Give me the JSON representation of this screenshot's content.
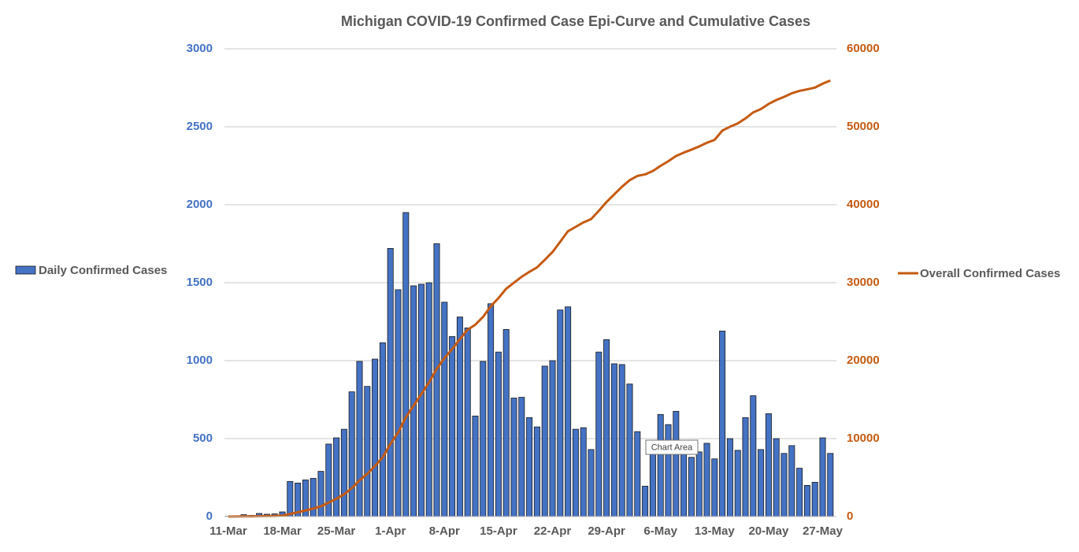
{
  "chart_data": {
    "type": "bar_line",
    "title": "Michigan COVID-19 Confirmed Case Epi-Curve and Cumulative Cases",
    "tooltip": "Chart Area",
    "categories": [
      "11-Mar",
      null,
      null,
      null,
      null,
      null,
      null,
      "18-Mar",
      null,
      null,
      null,
      null,
      null,
      null,
      "25-Mar",
      null,
      null,
      null,
      null,
      null,
      null,
      "1-Apr",
      null,
      null,
      null,
      null,
      null,
      null,
      "8-Apr",
      null,
      null,
      null,
      null,
      null,
      null,
      "15-Apr",
      null,
      null,
      null,
      null,
      null,
      null,
      "22-Apr",
      null,
      null,
      null,
      null,
      null,
      null,
      "29-Apr",
      null,
      null,
      null,
      null,
      null,
      null,
      "6-May",
      null,
      null,
      null,
      null,
      null,
      null,
      "13-May",
      null,
      null,
      null,
      null,
      null,
      null,
      "20-May",
      null,
      null,
      null,
      null,
      null,
      null,
      "27-May",
      null
    ],
    "series": [
      {
        "name": "Daily Confirmed Cases",
        "type": "bar",
        "axis": "y",
        "color": "#4472c4",
        "values": [
          2,
          5,
          12,
          8,
          20,
          15,
          17,
          30,
          225,
          215,
          235,
          245,
          290,
          465,
          505,
          560,
          800,
          995,
          835,
          1010,
          1115,
          1720,
          1455,
          1950,
          1480,
          1490,
          1500,
          1750,
          1375,
          1155,
          1280,
          1210,
          645,
          995,
          1365,
          1055,
          1200,
          760,
          765,
          635,
          575,
          965,
          1000,
          1325,
          1345,
          560,
          570,
          430,
          1055,
          1135,
          980,
          975,
          850,
          545,
          195,
          440,
          655,
          590,
          675,
          430,
          380,
          415,
          470,
          370,
          1190,
          500,
          425,
          635,
          775,
          430,
          660,
          500,
          405,
          455,
          310,
          200,
          220,
          505,
          405
        ]
      },
      {
        "name": "Overall Confirmed Cases",
        "type": "line",
        "axis": "y2",
        "color": "#c55a11",
        "values": [
          2,
          7,
          19,
          27,
          47,
          62,
          79,
          109,
          334,
          549,
          784,
          1029,
          1319,
          1784,
          2289,
          2849,
          3649,
          4644,
          5479,
          6489,
          7604,
          9324,
          10779,
          12729,
          14209,
          15699,
          17199,
          18949,
          20324,
          21479,
          22759,
          23969,
          24614,
          25609,
          26974,
          28029,
          29229,
          29989,
          30754,
          31389,
          31964,
          32929,
          33929,
          35254,
          36599,
          37159,
          37729,
          38159,
          39214,
          40349,
          41329,
          42304,
          43154,
          43699,
          43894,
          44334,
          44989,
          45579,
          46254,
          46684,
          47064,
          47479,
          47949,
          48319,
          49509,
          50009,
          50434,
          51069,
          51844,
          52274,
          52934,
          53434,
          53839,
          54294,
          54604,
          54804,
          55024,
          55529,
          55934
        ]
      }
    ],
    "ylim": [
      0,
      3000
    ],
    "yticks": [
      0,
      500,
      1000,
      1500,
      2000,
      2500,
      3000
    ],
    "y2lim": [
      0,
      60000
    ],
    "y2ticks": [
      0,
      10000,
      20000,
      30000,
      40000,
      50000,
      60000
    ],
    "grid": true
  }
}
